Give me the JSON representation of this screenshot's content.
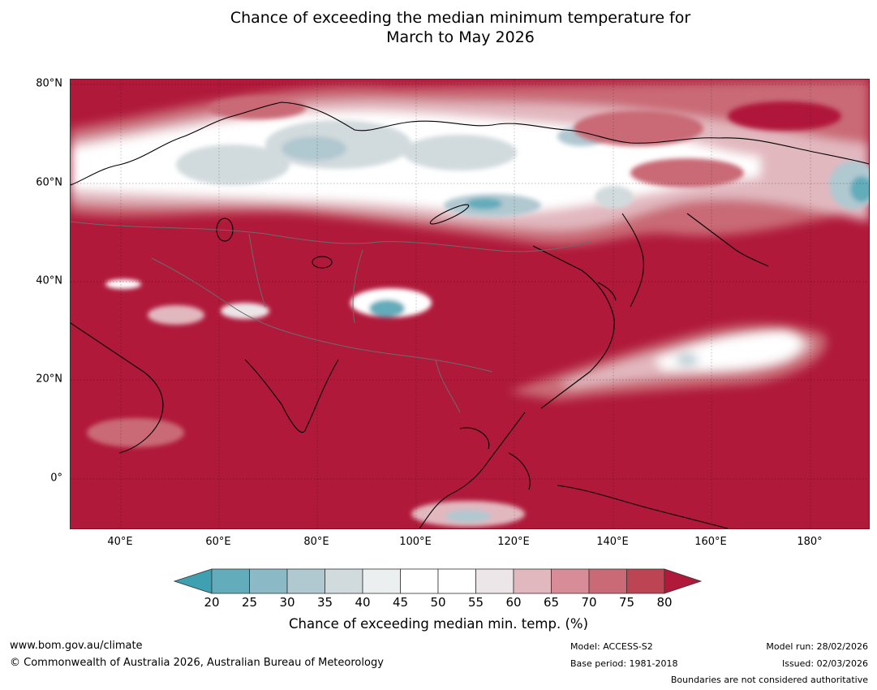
{
  "title": {
    "line1": "Chance of exceeding the median minimum temperature for",
    "line2": "March to May 2026"
  },
  "map": {
    "region": "Asia and western Pacific",
    "lat_labels": [
      "80°N",
      "60°N",
      "40°N",
      "20°N",
      "0°"
    ],
    "lon_labels": [
      "40°E",
      "60°E",
      "80°E",
      "100°E",
      "120°E",
      "140°E",
      "160°E",
      "180°"
    ],
    "dominant_category": "80"
  },
  "colorbar": {
    "ticks": [
      "20",
      "25",
      "30",
      "35",
      "40",
      "45",
      "50",
      "55",
      "60",
      "65",
      "70",
      "75",
      "80"
    ],
    "colors": [
      "#63acbb",
      "#8bb9c6",
      "#b0c8d0",
      "#d1dadd",
      "#ebeff0",
      "#ffffff",
      "#ffffff",
      "#ece6e8",
      "#e2b8bf",
      "#d78c98",
      "#c96a76",
      "#bc4453"
    ],
    "low_extend_color": "#3ea0b1",
    "high_extend_color": "#b0193a",
    "label": "Chance of exceeding median min. temp. (%)"
  },
  "footer": {
    "website": "www.bom.gov.au/climate",
    "copyright": "© Commonwealth of Australia 2026, Australian Bureau of Meteorology",
    "model": "Model: ACCESS-S2",
    "base_period": "Base period: 1981-2018",
    "model_run": "Model run: 28/02/2026",
    "issued": "Issued: 02/03/2026",
    "disclaimer": "Boundaries are not considered authoritative"
  }
}
